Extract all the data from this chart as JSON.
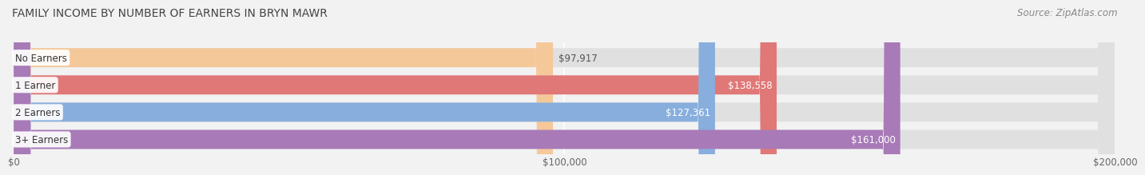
{
  "title": "FAMILY INCOME BY NUMBER OF EARNERS IN BRYN MAWR",
  "source": "Source: ZipAtlas.com",
  "categories": [
    "No Earners",
    "1 Earner",
    "2 Earners",
    "3+ Earners"
  ],
  "values": [
    97917,
    138558,
    127361,
    161000
  ],
  "bar_colors": [
    "#f5c89a",
    "#e07878",
    "#88aedd",
    "#a87ab8"
  ],
  "value_label_colors": [
    "#555555",
    "#ffffff",
    "#ffffff",
    "#ffffff"
  ],
  "value_labels": [
    "$97,917",
    "$138,558",
    "$127,361",
    "$161,000"
  ],
  "xlim": [
    0,
    200000
  ],
  "xticks": [
    0,
    100000,
    200000
  ],
  "xtick_labels": [
    "$0",
    "$100,000",
    "$200,000"
  ],
  "background_color": "#f2f2f2",
  "bar_bg_color": "#e0e0e0",
  "title_fontsize": 10,
  "source_fontsize": 8.5,
  "label_fontsize": 8.5,
  "value_fontsize": 8.5
}
